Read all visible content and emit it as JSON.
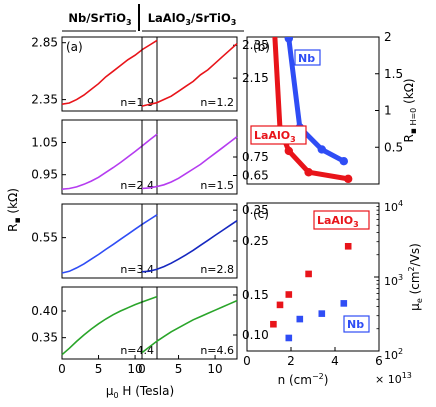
{
  "figure": {
    "col_headers": [
      "Nb/SrTiO",
      "LaAlO",
      "/SrTiO"
    ],
    "sub3": "3",
    "shared_xlabel_mu": "μ",
    "shared_xlabel_sub": "0",
    "shared_xlabel_rest": " H (Tesla)",
    "shared_ylabel_R": "R",
    "shared_ylabel_unit": " (kΩ)",
    "colors": {
      "red": "#e8141a",
      "magenta": "#b53cf0",
      "blue": "#2f4df5",
      "darkblue": "#1628c0",
      "green": "#2aa52a"
    }
  },
  "chart_data": [
    {
      "type": "line",
      "panel": "(a) left row 1",
      "label": "(a)",
      "annotation": "n=1.9",
      "xlim": [
        0,
        13
      ],
      "ylim": [
        2.25,
        2.9
      ],
      "yticks": [
        "2.85",
        "2.35"
      ],
      "ytick_values": [
        2.85,
        2.35
      ],
      "series": [
        {
          "color": "#e8141a",
          "x": [
            0,
            1,
            2,
            3,
            4,
            5,
            6,
            7,
            8,
            9,
            10,
            11,
            12,
            13
          ],
          "y": [
            2.31,
            2.32,
            2.35,
            2.39,
            2.44,
            2.49,
            2.55,
            2.6,
            2.65,
            2.7,
            2.74,
            2.79,
            2.83,
            2.87
          ]
        }
      ]
    },
    {
      "type": "line",
      "panel": "left row 2",
      "annotation": "n=2.4",
      "xlim": [
        0,
        13
      ],
      "ylim": [
        0.89,
        1.12
      ],
      "yticks": [
        "1.05",
        "0.95"
      ],
      "ytick_values": [
        1.05,
        0.95
      ],
      "series": [
        {
          "color": "#b53cf0",
          "x": [
            0,
            1,
            2,
            3,
            4,
            5,
            6,
            7,
            8,
            9,
            10,
            11,
            12,
            13
          ],
          "y": [
            0.905,
            0.907,
            0.912,
            0.92,
            0.93,
            0.942,
            0.957,
            0.972,
            0.988,
            1.005,
            1.022,
            1.04,
            1.058,
            1.076
          ]
        }
      ]
    },
    {
      "type": "line",
      "panel": "left row 3",
      "annotation": "n=3.4",
      "xlim": [
        0,
        13
      ],
      "ylim": [
        0.43,
        0.65
      ],
      "yticks": [
        "0.55"
      ],
      "ytick_values": [
        0.55
      ],
      "series": [
        {
          "color": "#2f4df5",
          "x": [
            0,
            1,
            2,
            3,
            4,
            5,
            6,
            7,
            8,
            9,
            10,
            11,
            12,
            13
          ],
          "y": [
            0.445,
            0.45,
            0.46,
            0.472,
            0.486,
            0.5,
            0.515,
            0.53,
            0.545,
            0.56,
            0.575,
            0.59,
            0.604,
            0.618
          ]
        }
      ]
    },
    {
      "type": "line",
      "panel": "left row 4",
      "annotation": "n=4.4",
      "xlim": [
        0,
        13
      ],
      "ylim": [
        0.31,
        0.445
      ],
      "yticks": [
        "0.40",
        "0.35"
      ],
      "ytick_values": [
        0.4,
        0.35
      ],
      "xticks": [
        "0",
        "5",
        "10"
      ],
      "xtick_values": [
        0,
        5,
        10
      ],
      "series": [
        {
          "color": "#2aa52a",
          "x": [
            0,
            1,
            2,
            3,
            4,
            5,
            6,
            7,
            8,
            9,
            10,
            11,
            12,
            13
          ],
          "y": [
            0.318,
            0.33,
            0.343,
            0.355,
            0.366,
            0.376,
            0.385,
            0.393,
            0.4,
            0.406,
            0.412,
            0.417,
            0.422,
            0.427
          ]
        }
      ]
    },
    {
      "type": "line",
      "panel": "right row 1",
      "annotation": "n=1.2",
      "xlim": [
        0,
        13
      ],
      "ylim": [
        1.95,
        2.4
      ],
      "yticks": [
        "2.35",
        "2.15"
      ],
      "ytick_values": [
        2.35,
        2.15
      ],
      "series": [
        {
          "color": "#e8141a",
          "x": [
            0,
            1,
            2,
            3,
            4,
            5,
            6,
            7,
            8,
            9,
            10,
            11,
            12,
            13
          ],
          "y": [
            1.98,
            1.99,
            2.0,
            2.02,
            2.04,
            2.07,
            2.1,
            2.13,
            2.17,
            2.2,
            2.24,
            2.28,
            2.32,
            2.36
          ]
        }
      ]
    },
    {
      "type": "line",
      "panel": "right row 2",
      "annotation": "n=1.5",
      "xlim": [
        0,
        13
      ],
      "ylim": [
        0.55,
        0.95
      ],
      "yticks": [
        "0.75",
        "0.65"
      ],
      "ytick_values": [
        0.75,
        0.65
      ],
      "series": [
        {
          "color": "#b53cf0",
          "x": [
            0,
            1,
            2,
            3,
            4,
            5,
            6,
            7,
            8,
            9,
            10,
            11,
            12,
            13
          ],
          "y": [
            0.58,
            0.583,
            0.59,
            0.6,
            0.615,
            0.635,
            0.66,
            0.685,
            0.71,
            0.74,
            0.77,
            0.8,
            0.83,
            0.86
          ]
        }
      ]
    },
    {
      "type": "line",
      "panel": "right row 3",
      "annotation": "n=2.8",
      "xlim": [
        0,
        13
      ],
      "ylim": [
        0.13,
        0.37
      ],
      "yticks": [
        "0.35",
        "0.25"
      ],
      "ytick_values": [
        0.35,
        0.25
      ],
      "series": [
        {
          "color": "#1628c0",
          "x": [
            0,
            1,
            2,
            3,
            4,
            5,
            6,
            7,
            8,
            9,
            10,
            11,
            12,
            13
          ],
          "y": [
            0.15,
            0.152,
            0.158,
            0.167,
            0.178,
            0.191,
            0.205,
            0.22,
            0.236,
            0.252,
            0.268,
            0.284,
            0.3,
            0.316
          ]
        }
      ]
    },
    {
      "type": "line",
      "panel": "right row 4",
      "annotation": "n=4.6",
      "xlim": [
        0,
        13
      ],
      "ylim": [
        0.07,
        0.16
      ],
      "yticks": [
        "0.15",
        "0.10"
      ],
      "ytick_values": [
        0.15,
        0.1
      ],
      "xticks": [
        "0",
        "5",
        "10"
      ],
      "xtick_values": [
        0,
        5,
        10
      ],
      "series": [
        {
          "color": "#2aa52a",
          "x": [
            0,
            1,
            2,
            3,
            4,
            5,
            6,
            7,
            8,
            9,
            10,
            11,
            12,
            13
          ],
          "y": [
            0.078,
            0.085,
            0.092,
            0.098,
            0.104,
            0.109,
            0.114,
            0.119,
            0.123,
            0.127,
            0.131,
            0.135,
            0.139,
            0.143
          ]
        }
      ]
    },
    {
      "type": "line",
      "panel": "(b)",
      "label": "(b)",
      "xlim": [
        0,
        6
      ],
      "ylim": [
        0,
        2
      ],
      "ylabel": "R",
      "ylabel_sub": "H=0",
      "ylabel_unit": " (kΩ)",
      "yticks": [
        "2",
        "1.5",
        "1",
        "0.5"
      ],
      "ytick_values": [
        2,
        1.5,
        1,
        0.5
      ],
      "series": [
        {
          "name": "Nb",
          "color": "#2f4df5",
          "x": [
            1.9,
            2.4,
            3.4,
            4.4
          ],
          "y": [
            1.98,
            0.77,
            0.47,
            0.31
          ]
        },
        {
          "name": "LaAlO",
          "name_sub": "3",
          "color": "#e8141a",
          "x": [
            1.2,
            1.5,
            1.9,
            2.8,
            4.6
          ],
          "y": [
            2.36,
            0.75,
            0.45,
            0.16,
            0.07
          ]
        }
      ],
      "legend_labels": [
        {
          "text": "Nb"
        },
        {
          "text": "LaAlO",
          "sub": "3"
        }
      ]
    },
    {
      "type": "scatter",
      "panel": "(c)",
      "label": "(c)",
      "xlim": [
        0,
        6
      ],
      "ylim": [
        100,
        10000
      ],
      "yscale": "log",
      "xlabel": "n (cm",
      "xlabel_sup": "−2",
      "xlabel_tail": ")",
      "x_multiplier": "× 10",
      "x_multiplier_exp": "13",
      "ylabel_mu": "μ",
      "ylabel_sub": "e",
      "ylabel_unit": " (cm",
      "ylabel_sup": "2",
      "ylabel_tail": "/Vs)",
      "xticks": [
        "0",
        "2",
        "4",
        "6"
      ],
      "xtick_values": [
        0,
        2,
        4,
        6
      ],
      "yticks": [
        {
          "base": "10",
          "exp": "4",
          "v": 10000
        },
        {
          "base": "10",
          "exp": "3",
          "v": 1000
        },
        {
          "base": "10",
          "exp": "2",
          "v": 100
        }
      ],
      "series": [
        {
          "name": "LaAlO",
          "name_sub": "3",
          "color": "#e8141a",
          "x": [
            1.2,
            1.5,
            1.9,
            2.8,
            4.6
          ],
          "y": [
            230,
            420,
            580,
            1100,
            2600
          ]
        },
        {
          "name": "Nb",
          "color": "#2f4df5",
          "x": [
            1.9,
            2.4,
            3.4,
            4.4
          ],
          "y": [
            150,
            270,
            320,
            440
          ]
        }
      ],
      "legend_labels": [
        {
          "text": "LaAlO",
          "sub": "3"
        },
        {
          "text": "Nb"
        }
      ]
    }
  ]
}
